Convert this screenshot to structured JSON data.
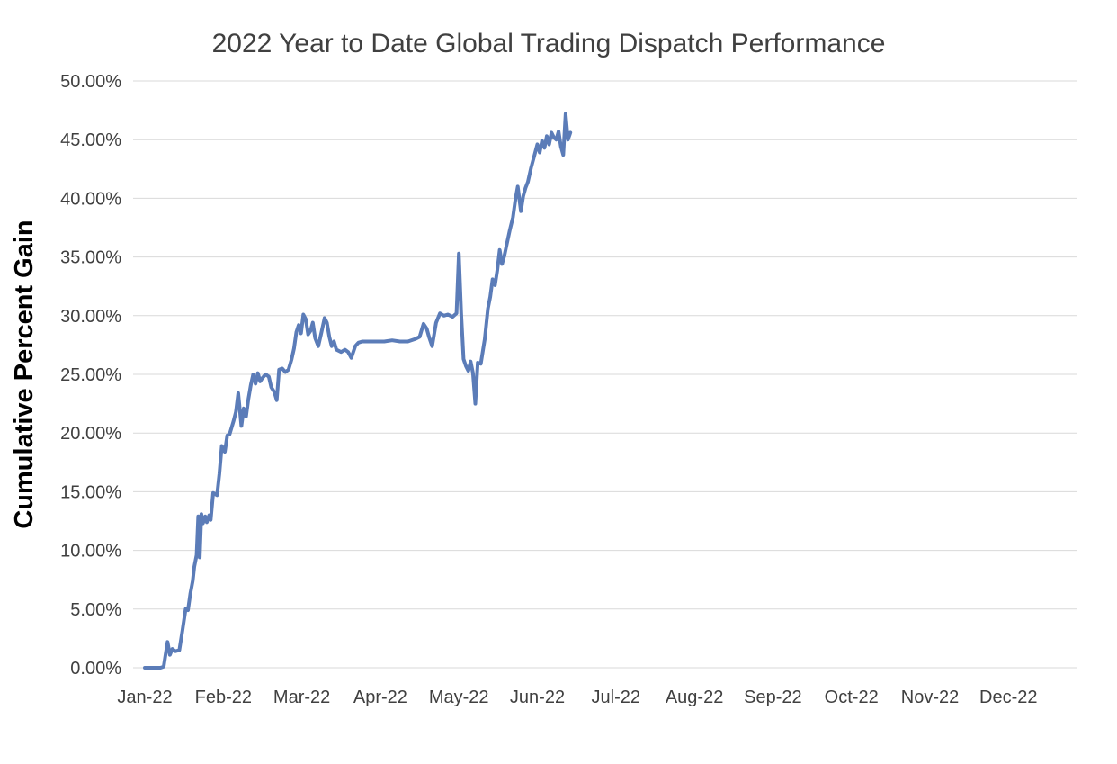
{
  "page": {
    "background_color": "#ffffff"
  },
  "chart_data": {
    "type": "line",
    "title": "2022 Year to Date Global Trading Dispatch Performance",
    "xlabel": "",
    "ylabel": "Cumulative Percent Gain",
    "ylim": [
      0,
      50
    ],
    "ytick_step": 5,
    "xlim_months": [
      0,
      12
    ],
    "grid": "horizontal",
    "legend": "none",
    "line_color": "#5b7cb8",
    "title_color": "#404040",
    "tick_label_color": "#404040",
    "gridline_color": "#d9d9d9",
    "ytick_labels": [
      "0.00%",
      "5.00%",
      "10.00%",
      "15.00%",
      "20.00%",
      "25.00%",
      "30.00%",
      "35.00%",
      "40.00%",
      "45.00%",
      "50.00%"
    ],
    "xtick_labels": [
      "Jan-22",
      "Feb-22",
      "Mar-22",
      "Apr-22",
      "May-22",
      "Jun-22",
      "Jul-22",
      "Aug-22",
      "Sep-22",
      "Oct-22",
      "Nov-22",
      "Dec-22"
    ],
    "series": [
      {
        "name": "Cumulative Percent Gain",
        "x_unit": "months-since-jan-1-2022",
        "x": [
          0.0,
          0.1,
          0.2,
          0.24,
          0.29,
          0.32,
          0.35,
          0.39,
          0.44,
          0.48,
          0.52,
          0.55,
          0.58,
          0.61,
          0.63,
          0.66,
          0.68,
          0.7,
          0.72,
          0.74,
          0.77,
          0.79,
          0.82,
          0.84,
          0.87,
          0.92,
          0.95,
          0.98,
          1.02,
          1.05,
          1.08,
          1.13,
          1.16,
          1.19,
          1.23,
          1.26,
          1.29,
          1.32,
          1.35,
          1.38,
          1.41,
          1.44,
          1.47,
          1.5,
          1.54,
          1.58,
          1.61,
          1.65,
          1.68,
          1.71,
          1.75,
          1.79,
          1.83,
          1.87,
          1.9,
          1.93,
          1.96,
          1.99,
          2.02,
          2.05,
          2.08,
          2.11,
          2.14,
          2.17,
          2.21,
          2.24,
          2.29,
          2.32,
          2.35,
          2.38,
          2.41,
          2.44,
          2.5,
          2.55,
          2.59,
          2.63,
          2.68,
          2.72,
          2.77,
          2.85,
          2.95,
          3.05,
          3.15,
          3.25,
          3.35,
          3.44,
          3.5,
          3.55,
          3.59,
          3.62,
          3.66,
          3.71,
          3.76,
          3.81,
          3.86,
          3.92,
          3.97,
          4.0,
          4.03,
          4.06,
          4.09,
          4.12,
          4.15,
          4.18,
          4.21,
          4.24,
          4.28,
          4.33,
          4.37,
          4.4,
          4.43,
          4.46,
          4.49,
          4.52,
          4.55,
          4.58,
          4.61,
          4.65,
          4.69,
          4.72,
          4.75,
          4.79,
          4.82,
          4.85,
          4.88,
          4.92,
          4.96,
          5.0,
          5.03,
          5.06,
          5.09,
          5.12,
          5.15,
          5.18,
          5.21,
          5.24,
          5.27,
          5.3,
          5.33,
          5.36,
          5.39,
          5.42
        ],
        "y": [
          0.0,
          0.0,
          0.0,
          0.1,
          2.2,
          1.1,
          1.6,
          1.4,
          1.5,
          3.2,
          5.0,
          4.9,
          6.3,
          7.4,
          8.6,
          9.6,
          12.9,
          9.4,
          13.1,
          12.3,
          12.9,
          12.4,
          13.0,
          12.6,
          14.9,
          14.7,
          16.5,
          18.9,
          18.4,
          19.8,
          19.9,
          21.0,
          21.8,
          23.4,
          20.6,
          22.1,
          21.4,
          22.9,
          24.1,
          25.0,
          24.2,
          25.1,
          24.4,
          24.7,
          25.0,
          24.8,
          23.9,
          23.5,
          22.8,
          25.4,
          25.5,
          25.2,
          25.4,
          26.3,
          27.2,
          28.6,
          29.2,
          28.5,
          30.1,
          29.7,
          28.4,
          28.7,
          29.4,
          28.1,
          27.4,
          28.3,
          29.8,
          29.4,
          28.2,
          27.4,
          27.8,
          27.1,
          26.9,
          27.1,
          26.9,
          26.4,
          27.4,
          27.7,
          27.8,
          27.8,
          27.8,
          27.8,
          27.9,
          27.8,
          27.8,
          28.0,
          28.2,
          29.3,
          28.9,
          28.2,
          27.4,
          29.4,
          30.2,
          30.0,
          30.1,
          29.9,
          30.2,
          35.3,
          30.2,
          26.3,
          25.7,
          25.3,
          26.1,
          25.1,
          22.5,
          26.0,
          25.9,
          28.0,
          30.6,
          31.6,
          33.1,
          32.6,
          33.9,
          35.6,
          34.4,
          35.1,
          36.1,
          37.3,
          38.4,
          39.9,
          41.0,
          38.9,
          40.2,
          40.9,
          41.4,
          42.6,
          43.6,
          44.6,
          43.9,
          44.9,
          44.3,
          45.3,
          44.6,
          45.6,
          45.2,
          45.0,
          45.7,
          44.4,
          43.7,
          47.2,
          45.0,
          45.6
        ]
      }
    ]
  }
}
